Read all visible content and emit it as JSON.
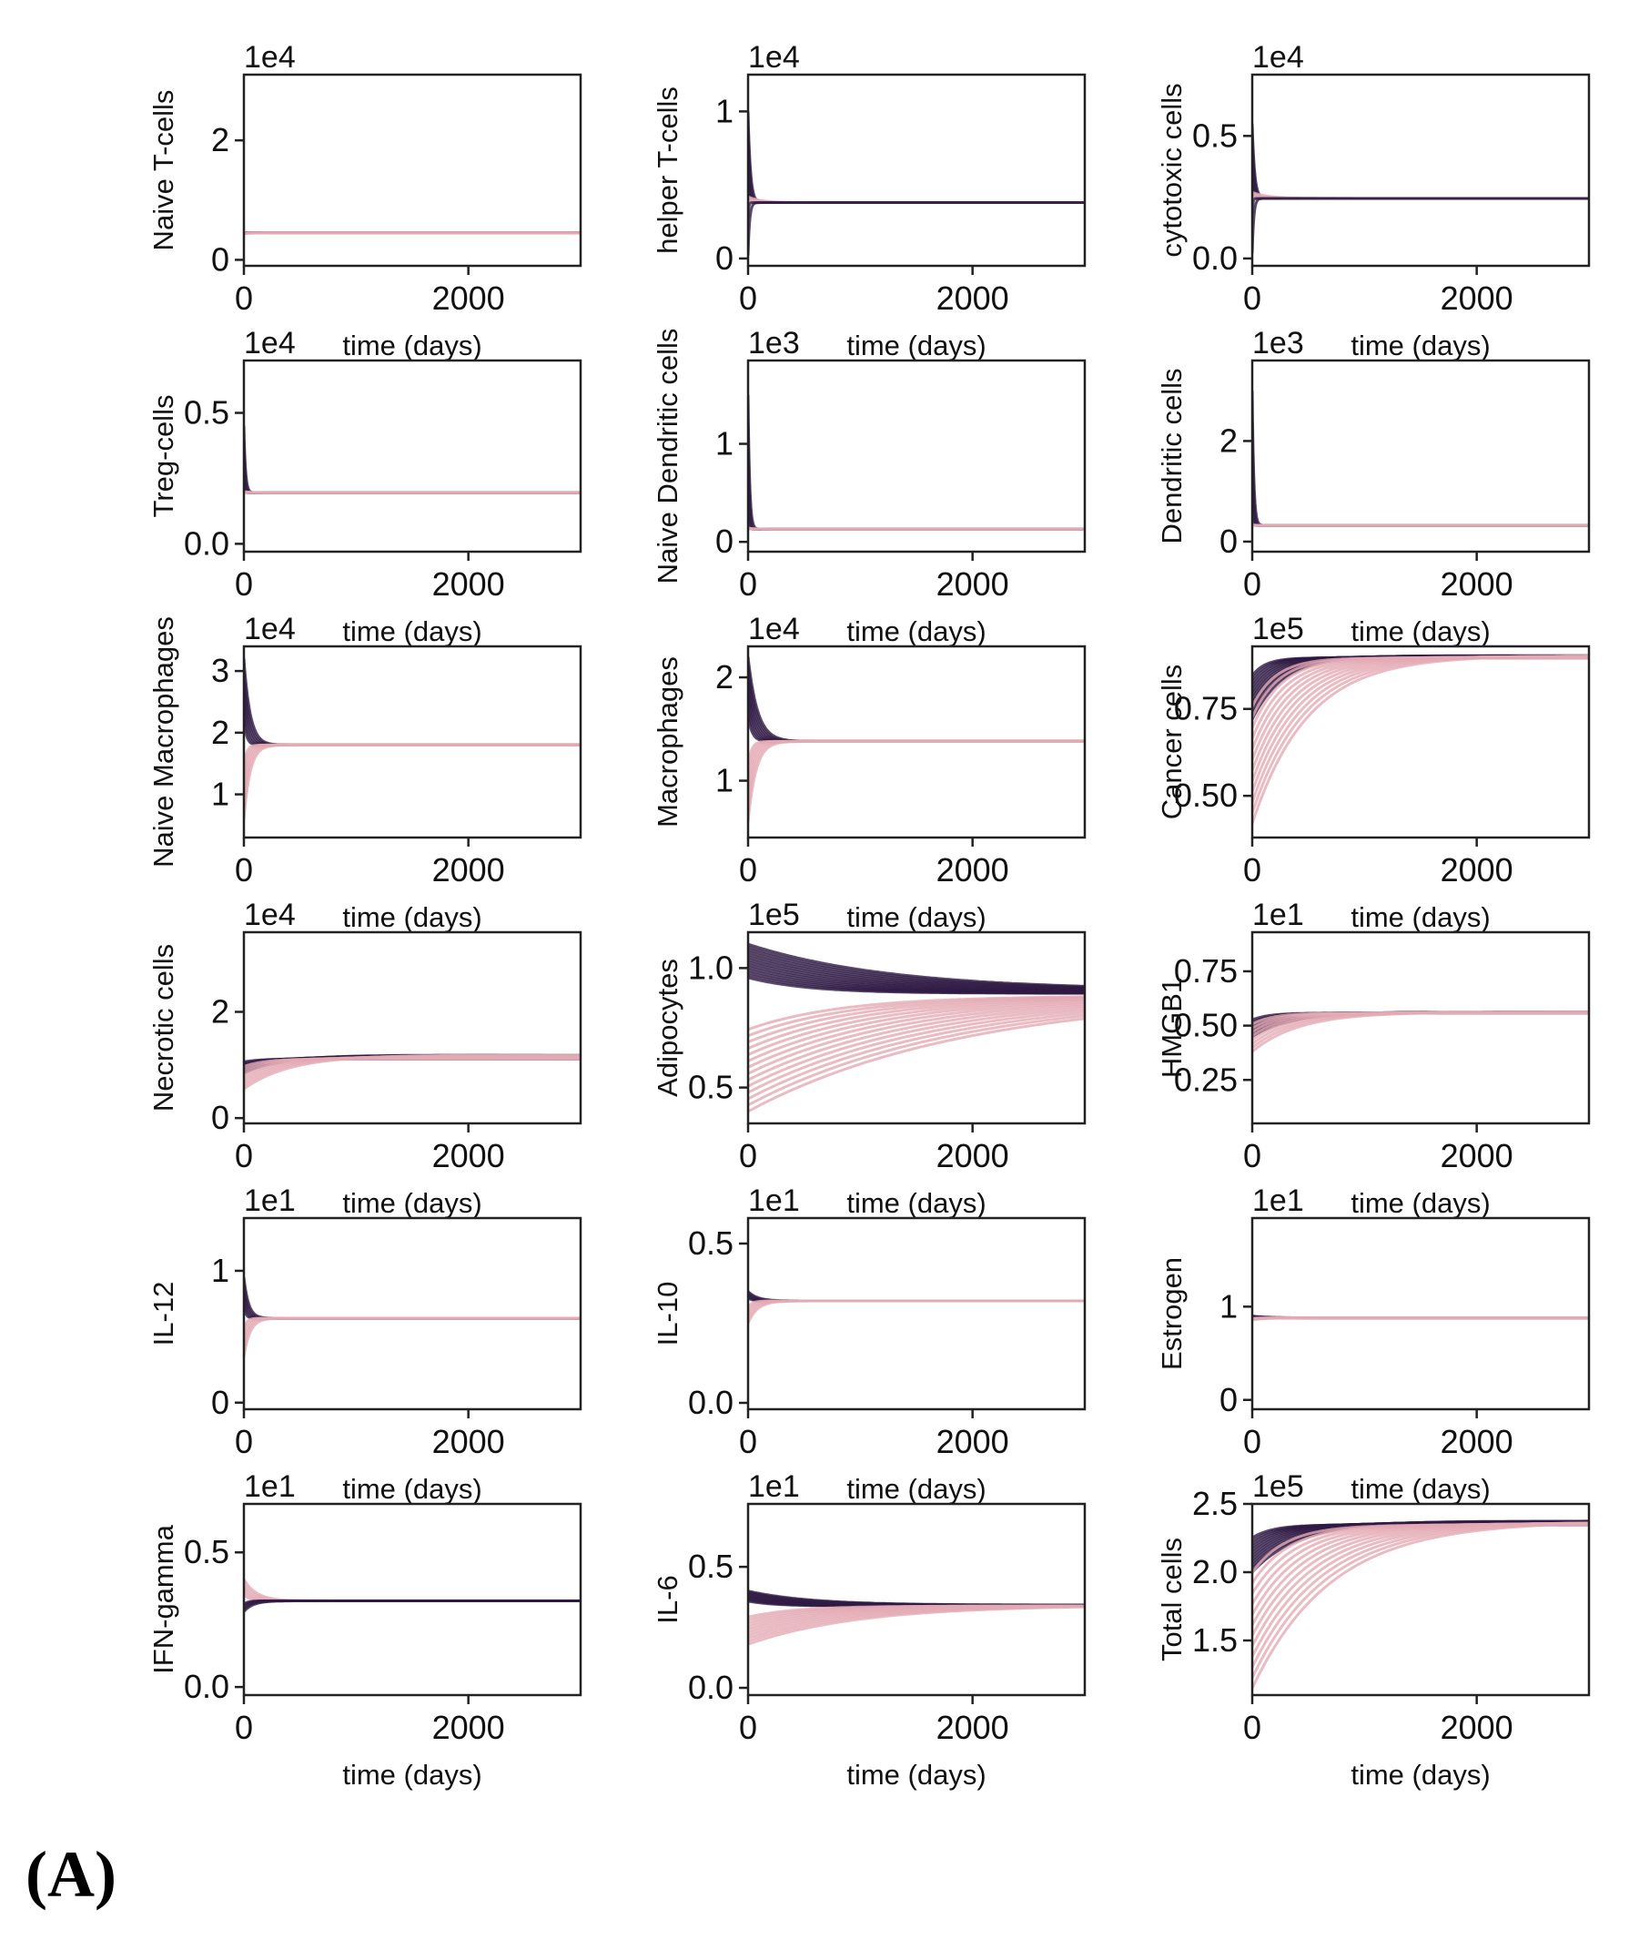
{
  "panel_label": "(A)",
  "colors": {
    "dark": "#2f1a45",
    "light": "#e3aab4",
    "axis": "#222222"
  },
  "chart_data": [
    {
      "type": "line",
      "ylabel": "Naive T-cells",
      "xlabel": "time (days)",
      "multiplier": "1e4",
      "xlim": [
        0,
        3000
      ],
      "xticks": [
        0,
        2000
      ],
      "ylim": [
        -0.1,
        3.1
      ],
      "yticks": [
        0,
        2
      ],
      "ytick_labels": [
        "0",
        "2"
      ],
      "spread_end": 0,
      "series": [
        {
          "name": "",
          "color": "#2f1a45",
          "start": 0.45,
          "end": 0.45,
          "tau": 50,
          "count": 4
        },
        {
          "name": "",
          "color": "#e3aab4",
          "start": 0.44,
          "end": 0.45,
          "tau": 50,
          "count": 3
        }
      ]
    },
    {
      "type": "line",
      "ylabel": "helper T-cells",
      "xlabel": "time (days)",
      "multiplier": "1e4",
      "xlim": [
        0,
        3000
      ],
      "xticks": [
        0,
        2000
      ],
      "ylim": [
        -0.05,
        1.25
      ],
      "yticks": [
        0,
        1
      ],
      "ytick_labels": [
        "0",
        "1"
      ],
      "spread_end": 0,
      "series": [
        {
          "name": "",
          "color": "#2f1a45",
          "start": 1.0,
          "end": 0.38,
          "tau": 15,
          "count": 5
        },
        {
          "name": "",
          "color": "#e3aab4",
          "start": 0.42,
          "end": 0.38,
          "tau": 80,
          "count": 5
        },
        {
          "name": "",
          "color": "#2f1a45",
          "start": 0.02,
          "end": 0.38,
          "tau": 10,
          "count": 2
        }
      ]
    },
    {
      "type": "line",
      "ylabel": "cytotoxic cells",
      "xlabel": "time (days)",
      "multiplier": "1e4",
      "xlim": [
        0,
        3000
      ],
      "xticks": [
        0,
        2000
      ],
      "ylim": [
        -0.03,
        0.75
      ],
      "yticks": [
        0,
        0.5
      ],
      "ytick_labels": [
        "0.0",
        "0.5"
      ],
      "spread_end": 0,
      "series": [
        {
          "name": "",
          "color": "#2f1a45",
          "start": 0.55,
          "end": 0.245,
          "tau": 15,
          "count": 5
        },
        {
          "name": "",
          "color": "#e3aab4",
          "start": 0.27,
          "end": 0.245,
          "tau": 100,
          "count": 5
        },
        {
          "name": "",
          "color": "#2f1a45",
          "start": 0.02,
          "end": 0.245,
          "tau": 10,
          "count": 2
        }
      ]
    },
    {
      "type": "line",
      "ylabel": "Treg-cells",
      "xlabel": "time (days)",
      "multiplier": "1e4",
      "xlim": [
        0,
        3000
      ],
      "xticks": [
        0,
        2000
      ],
      "ylim": [
        -0.03,
        0.7
      ],
      "yticks": [
        0,
        0.5
      ],
      "ytick_labels": [
        "0.0",
        "0.5"
      ],
      "spread_end": 0,
      "series": [
        {
          "name": "",
          "color": "#2f1a45",
          "start": 0.45,
          "end": 0.195,
          "tau": 10,
          "count": 4
        },
        {
          "name": "",
          "color": "#e3aab4",
          "start": 0.2,
          "end": 0.195,
          "tau": 50,
          "count": 3
        }
      ]
    },
    {
      "type": "line",
      "ylabel": "Naive Dendritic cells",
      "xlabel": "time (days)",
      "multiplier": "1e3",
      "xlim": [
        0,
        3000
      ],
      "xticks": [
        0,
        2000
      ],
      "ylim": [
        -0.1,
        1.85
      ],
      "yticks": [
        0,
        1
      ],
      "ytick_labels": [
        "0",
        "1"
      ],
      "spread_end": 0,
      "series": [
        {
          "name": "",
          "color": "#2f1a45",
          "start": 1.5,
          "end": 0.13,
          "tau": 10,
          "count": 4
        },
        {
          "name": "",
          "color": "#e3aab4",
          "start": 0.14,
          "end": 0.13,
          "tau": 50,
          "count": 3
        }
      ]
    },
    {
      "type": "line",
      "ylabel": "Dendritic cells",
      "xlabel": "time (days)",
      "multiplier": "1e3",
      "xlim": [
        0,
        3000
      ],
      "xticks": [
        0,
        2000
      ],
      "ylim": [
        -0.2,
        3.6
      ],
      "yticks": [
        0,
        2
      ],
      "ytick_labels": [
        "0",
        "2"
      ],
      "spread_end": 0,
      "series": [
        {
          "name": "",
          "color": "#2f1a45",
          "start": 3.0,
          "end": 0.32,
          "tau": 10,
          "count": 4
        },
        {
          "name": "",
          "color": "#e3aab4",
          "start": 0.33,
          "end": 0.32,
          "tau": 50,
          "count": 3
        }
      ]
    },
    {
      "type": "line",
      "ylabel": "Naive Macrophages",
      "xlabel": "time (days)",
      "multiplier": "1e4",
      "xlim": [
        0,
        3000
      ],
      "xticks": [
        0,
        2000
      ],
      "ylim": [
        0.3,
        3.4
      ],
      "yticks": [
        1,
        2,
        3
      ],
      "ytick_labels": [
        "1",
        "2",
        "3"
      ],
      "spread_end": 0,
      "series": [
        {
          "name": "",
          "color": "#2f1a45",
          "start": 3.2,
          "end": 1.8,
          "tau": 40,
          "count": 6
        },
        {
          "name": "",
          "color": "#e3aab4",
          "start": 0.6,
          "end": 1.8,
          "tau": 40,
          "count": 6
        }
      ]
    },
    {
      "type": "line",
      "ylabel": "Macrophages",
      "xlabel": "time (days)",
      "multiplier": "1e4",
      "xlim": [
        0,
        3000
      ],
      "xticks": [
        0,
        2000
      ],
      "ylim": [
        0.45,
        2.3
      ],
      "yticks": [
        1,
        2
      ],
      "ytick_labels": [
        "1",
        "2"
      ],
      "spread_end": 0,
      "series": [
        {
          "name": "",
          "color": "#2f1a45",
          "start": 2.2,
          "end": 1.38,
          "tau": 60,
          "count": 8
        },
        {
          "name": "",
          "color": "#e3aab4",
          "start": 0.6,
          "end": 1.38,
          "tau": 50,
          "count": 6
        }
      ]
    },
    {
      "type": "line",
      "ylabel": "Cancer cells",
      "xlabel": "time (days)",
      "multiplier": "1e5",
      "xlim": [
        0,
        3000
      ],
      "xticks": [
        0,
        2000
      ],
      "ylim": [
        0.38,
        0.93
      ],
      "yticks": [
        0.5,
        0.75
      ],
      "ytick_labels": [
        "0.50",
        "0.75"
      ],
      "spread_end": 0.012,
      "series": [
        {
          "name": "",
          "color": "#2f1a45",
          "start": 0.72,
          "end": 0.9,
          "tau": 200,
          "count": 12
        },
        {
          "name": "",
          "color": "#e3aab4",
          "start": 0.42,
          "end": 0.9,
          "tau": 350,
          "count": 12
        }
      ]
    },
    {
      "type": "line",
      "ylabel": "Necrotic cells",
      "xlabel": "time (days)",
      "multiplier": "1e4",
      "xlim": [
        0,
        3000
      ],
      "xticks": [
        0,
        2000
      ],
      "ylim": [
        -0.1,
        3.5
      ],
      "yticks": [
        0,
        2
      ],
      "ytick_labels": [
        "0",
        "2"
      ],
      "spread_end": 0.02,
      "series": [
        {
          "name": "",
          "color": "#2f1a45",
          "start": 0.85,
          "end": 1.15,
          "tau": 250,
          "count": 8
        },
        {
          "name": "",
          "color": "#e3aab4",
          "start": 0.55,
          "end": 1.15,
          "tau": 300,
          "count": 8
        }
      ]
    },
    {
      "type": "line",
      "ylabel": "Adipocytes",
      "xlabel": "time (days)",
      "multiplier": "1e5",
      "xlim": [
        0,
        3000
      ],
      "xticks": [
        0,
        2000
      ],
      "ylim": [
        0.35,
        1.15
      ],
      "yticks": [
        0.5,
        1.0
      ],
      "ytick_labels": [
        "0.5",
        "1.0"
      ],
      "spread_end": 0.015,
      "series": [
        {
          "name": "",
          "color": "#2f1a45",
          "start": 1.1,
          "end": 0.9,
          "tau": 900,
          "count": 14
        },
        {
          "name": "",
          "color": "#e3aab4",
          "start": 0.4,
          "end": 0.89,
          "tau": 1400,
          "count": 14
        }
      ]
    },
    {
      "type": "line",
      "ylabel": "HMGB1",
      "xlabel": "time (days)",
      "multiplier": "1e1",
      "xlim": [
        0,
        3000
      ],
      "xticks": [
        0,
        2000
      ],
      "ylim": [
        0.05,
        0.93
      ],
      "yticks": [
        0.25,
        0.5,
        0.75
      ],
      "ytick_labels": [
        "0.25",
        "0.50",
        "0.75"
      ],
      "spread_end": 0.005,
      "series": [
        {
          "name": "",
          "color": "#2f1a45",
          "start": 0.45,
          "end": 0.56,
          "tau": 250,
          "count": 8
        },
        {
          "name": "",
          "color": "#e3aab4",
          "start": 0.38,
          "end": 0.56,
          "tau": 300,
          "count": 8
        }
      ]
    },
    {
      "type": "line",
      "ylabel": "IL-12",
      "xlabel": "time (days)",
      "multiplier": "1e1",
      "xlim": [
        0,
        3000
      ],
      "xticks": [
        0,
        2000
      ],
      "ylim": [
        -0.05,
        1.4
      ],
      "yticks": [
        0,
        1
      ],
      "ytick_labels": [
        "0",
        "1"
      ],
      "spread_end": 0,
      "series": [
        {
          "name": "",
          "color": "#2f1a45",
          "start": 0.95,
          "end": 0.64,
          "tau": 30,
          "count": 5
        },
        {
          "name": "",
          "color": "#e3aab4",
          "start": 0.35,
          "end": 0.64,
          "tau": 40,
          "count": 5
        }
      ]
    },
    {
      "type": "line",
      "ylabel": "IL-10",
      "xlabel": "time (days)",
      "multiplier": "1e1",
      "xlim": [
        0,
        3000
      ],
      "xticks": [
        0,
        2000
      ],
      "ylim": [
        -0.02,
        0.58
      ],
      "yticks": [
        0,
        0.5
      ],
      "ytick_labels": [
        "0.0",
        "0.5"
      ],
      "spread_end": 0,
      "series": [
        {
          "name": "",
          "color": "#2f1a45",
          "start": 0.35,
          "end": 0.32,
          "tau": 60,
          "count": 5
        },
        {
          "name": "",
          "color": "#e3aab4",
          "start": 0.25,
          "end": 0.32,
          "tau": 60,
          "count": 5
        }
      ]
    },
    {
      "type": "line",
      "ylabel": "Estrogen",
      "xlabel": "time (days)",
      "multiplier": "1e1",
      "xlim": [
        0,
        3000
      ],
      "xticks": [
        0,
        2000
      ],
      "ylim": [
        -0.1,
        1.95
      ],
      "yticks": [
        0,
        1
      ],
      "ytick_labels": [
        "0",
        "1"
      ],
      "spread_end": 0,
      "series": [
        {
          "name": "",
          "color": "#2f1a45",
          "start": 0.9,
          "end": 0.88,
          "tau": 100,
          "count": 4
        },
        {
          "name": "",
          "color": "#e3aab4",
          "start": 0.86,
          "end": 0.88,
          "tau": 100,
          "count": 4
        }
      ]
    },
    {
      "type": "line",
      "ylabel": "IFN-gamma",
      "xlabel": "time (days)",
      "multiplier": "1e1",
      "xlim": [
        0,
        3000
      ],
      "xticks": [
        0,
        2000
      ],
      "ylim": [
        -0.03,
        0.68
      ],
      "yticks": [
        0,
        0.5
      ],
      "ytick_labels": [
        "0.0",
        "0.5"
      ],
      "spread_end": 0,
      "series": [
        {
          "name": "",
          "color": "#e3aab4",
          "start": 0.4,
          "end": 0.32,
          "tau": 80,
          "count": 5
        },
        {
          "name": "",
          "color": "#2f1a45",
          "start": 0.28,
          "end": 0.32,
          "tau": 60,
          "count": 5
        }
      ]
    },
    {
      "type": "line",
      "ylabel": "IL-6",
      "xlabel": "time (days)",
      "multiplier": "1e1",
      "xlim": [
        0,
        3000
      ],
      "xticks": [
        0,
        2000
      ],
      "ylim": [
        -0.03,
        0.76
      ],
      "yticks": [
        0,
        0.5
      ],
      "ytick_labels": [
        "0.0",
        "0.5"
      ],
      "spread_end": 0.005,
      "series": [
        {
          "name": "",
          "color": "#2f1a45",
          "start": 0.4,
          "end": 0.34,
          "tau": 400,
          "count": 10
        },
        {
          "name": "",
          "color": "#e3aab4",
          "start": 0.18,
          "end": 0.34,
          "tau": 700,
          "count": 10
        }
      ]
    },
    {
      "type": "line",
      "ylabel": "Total cells",
      "xlabel": "time (days)",
      "multiplier": "1e5",
      "xlim": [
        0,
        3000
      ],
      "xticks": [
        0,
        2000
      ],
      "ylim": [
        1.1,
        2.5
      ],
      "yticks": [
        1.5,
        2.0,
        2.5
      ],
      "ytick_labels": [
        "1.5",
        "2.0",
        "2.5"
      ],
      "spread_end": 0.02,
      "overshoot": 0.08,
      "series": [
        {
          "name": "",
          "color": "#2f1a45",
          "start": 2.0,
          "end": 2.36,
          "tau": 300,
          "count": 12
        },
        {
          "name": "",
          "color": "#e3aab4",
          "start": 1.15,
          "end": 2.36,
          "tau": 500,
          "count": 12
        }
      ]
    }
  ]
}
